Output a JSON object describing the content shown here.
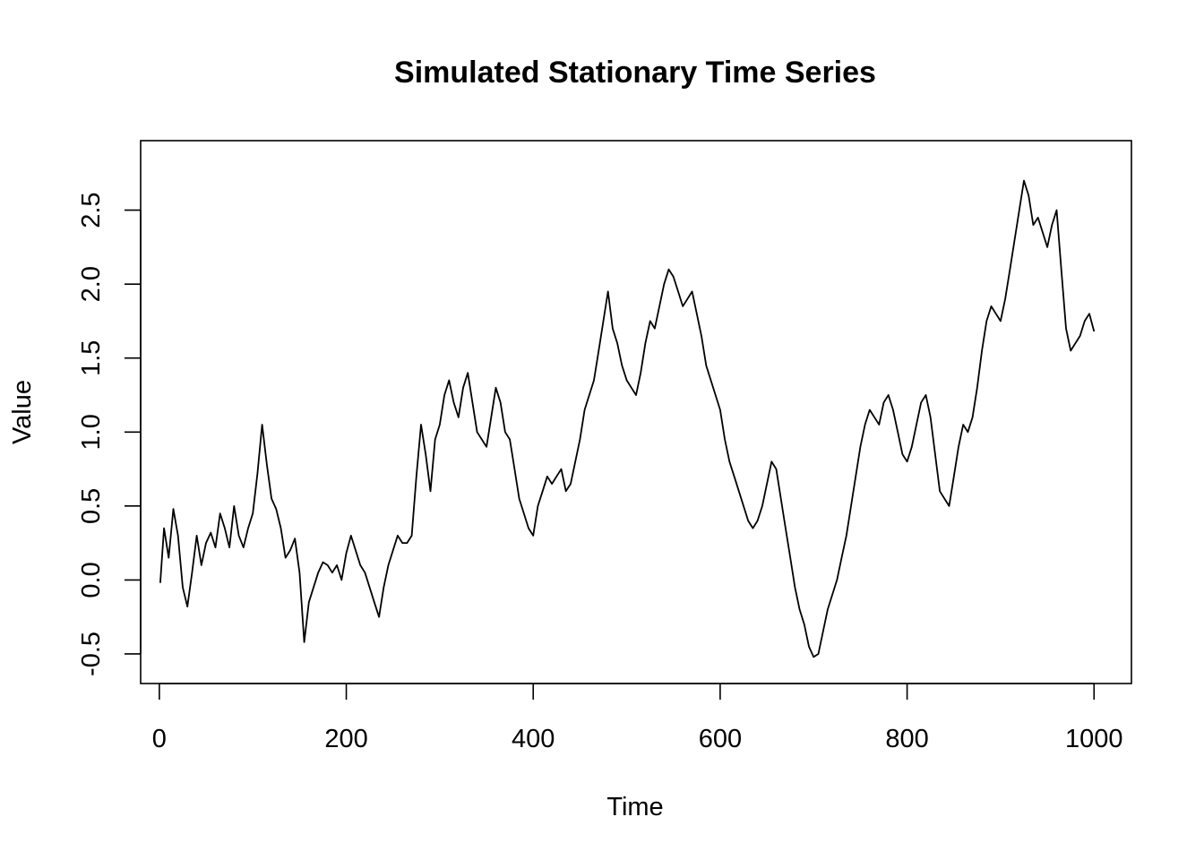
{
  "chart_data": {
    "type": "line",
    "title": "Simulated Stationary Time Series",
    "xlabel": "Time",
    "ylabel": "Value",
    "xlim": [
      -20,
      1040
    ],
    "ylim": [
      -0.7,
      2.97
    ],
    "x_ticks": [
      0,
      200,
      400,
      600,
      800,
      1000
    ],
    "y_ticks": [
      -0.5,
      0.0,
      0.5,
      1.0,
      1.5,
      2.0,
      2.5
    ],
    "x_tick_labels": [
      "0",
      "200",
      "400",
      "600",
      "800",
      "1000"
    ],
    "y_tick_labels": [
      "-0.5",
      "0.0",
      "0.5",
      "1.0",
      "1.5",
      "2.0",
      "2.5"
    ],
    "line_color": "#000000",
    "grid": false,
    "series": [
      {
        "x": [
          1,
          5,
          10,
          15,
          20,
          25,
          30,
          35,
          40,
          45,
          50,
          55,
          60,
          65,
          70,
          75,
          80,
          85,
          90,
          95,
          100,
          105,
          110,
          115,
          120,
          125,
          130,
          135,
          140,
          145,
          150,
          155,
          160,
          165,
          170,
          175,
          180,
          185,
          190,
          195,
          200,
          205,
          210,
          215,
          220,
          225,
          230,
          235,
          240,
          245,
          250,
          255,
          260,
          265,
          270,
          275,
          280,
          285,
          290,
          295,
          300,
          305,
          310,
          315,
          320,
          325,
          330,
          335,
          340,
          345,
          350,
          355,
          360,
          365,
          370,
          375,
          380,
          385,
          390,
          395,
          400,
          405,
          410,
          415,
          420,
          425,
          430,
          435,
          440,
          445,
          450,
          455,
          460,
          465,
          470,
          475,
          480,
          485,
          490,
          495,
          500,
          505,
          510,
          515,
          520,
          525,
          530,
          535,
          540,
          545,
          550,
          555,
          560,
          565,
          570,
          575,
          580,
          585,
          590,
          595,
          600,
          605,
          610,
          615,
          620,
          625,
          630,
          635,
          640,
          645,
          650,
          655,
          660,
          665,
          670,
          675,
          680,
          685,
          690,
          695,
          700,
          705,
          710,
          715,
          720,
          725,
          730,
          735,
          740,
          745,
          750,
          755,
          760,
          765,
          770,
          775,
          780,
          785,
          790,
          795,
          800,
          805,
          810,
          815,
          820,
          825,
          830,
          835,
          840,
          845,
          850,
          855,
          860,
          865,
          870,
          875,
          880,
          885,
          890,
          895,
          900,
          905,
          910,
          915,
          920,
          925,
          930,
          935,
          940,
          945,
          950,
          955,
          960,
          965,
          970,
          975,
          980,
          985,
          990,
          995,
          1000
        ],
        "values": [
          -0.02,
          0.35,
          0.15,
          0.48,
          0.3,
          -0.05,
          -0.18,
          0.05,
          0.3,
          0.1,
          0.25,
          0.32,
          0.22,
          0.45,
          0.35,
          0.22,
          0.5,
          0.3,
          0.22,
          0.35,
          0.45,
          0.72,
          1.05,
          0.78,
          0.55,
          0.48,
          0.35,
          0.15,
          0.2,
          0.28,
          0.05,
          -0.42,
          -0.15,
          -0.05,
          0.05,
          0.12,
          0.1,
          0.05,
          0.1,
          0.0,
          0.18,
          0.3,
          0.2,
          0.1,
          0.05,
          -0.05,
          -0.15,
          -0.25,
          -0.05,
          0.1,
          0.2,
          0.3,
          0.25,
          0.25,
          0.3,
          0.7,
          1.05,
          0.85,
          0.6,
          0.95,
          1.05,
          1.25,
          1.35,
          1.2,
          1.1,
          1.3,
          1.4,
          1.2,
          1.0,
          0.95,
          0.9,
          1.1,
          1.3,
          1.2,
          1.0,
          0.95,
          0.75,
          0.55,
          0.45,
          0.35,
          0.3,
          0.5,
          0.6,
          0.7,
          0.65,
          0.7,
          0.75,
          0.6,
          0.65,
          0.8,
          0.95,
          1.15,
          1.25,
          1.35,
          1.55,
          1.75,
          1.95,
          1.7,
          1.6,
          1.45,
          1.35,
          1.3,
          1.25,
          1.4,
          1.6,
          1.75,
          1.7,
          1.85,
          2.0,
          2.1,
          2.05,
          1.95,
          1.85,
          1.9,
          1.95,
          1.8,
          1.65,
          1.45,
          1.35,
          1.25,
          1.15,
          0.95,
          0.8,
          0.7,
          0.6,
          0.5,
          0.4,
          0.35,
          0.4,
          0.5,
          0.65,
          0.8,
          0.75,
          0.55,
          0.35,
          0.15,
          -0.05,
          -0.2,
          -0.3,
          -0.45,
          -0.52,
          -0.5,
          -0.35,
          -0.2,
          -0.1,
          0.0,
          0.15,
          0.3,
          0.5,
          0.7,
          0.9,
          1.05,
          1.15,
          1.1,
          1.05,
          1.2,
          1.25,
          1.15,
          1.0,
          0.85,
          0.8,
          0.9,
          1.05,
          1.2,
          1.25,
          1.1,
          0.85,
          0.6,
          0.55,
          0.5,
          0.7,
          0.9,
          1.05,
          1.0,
          1.1,
          1.3,
          1.55,
          1.75,
          1.85,
          1.8,
          1.75,
          1.9,
          2.1,
          2.3,
          2.5,
          2.7,
          2.6,
          2.4,
          2.45,
          2.35,
          2.25,
          2.4,
          2.5,
          2.1,
          1.7,
          1.55,
          1.6,
          1.65,
          1.75,
          1.8,
          1.68
        ]
      }
    ]
  }
}
